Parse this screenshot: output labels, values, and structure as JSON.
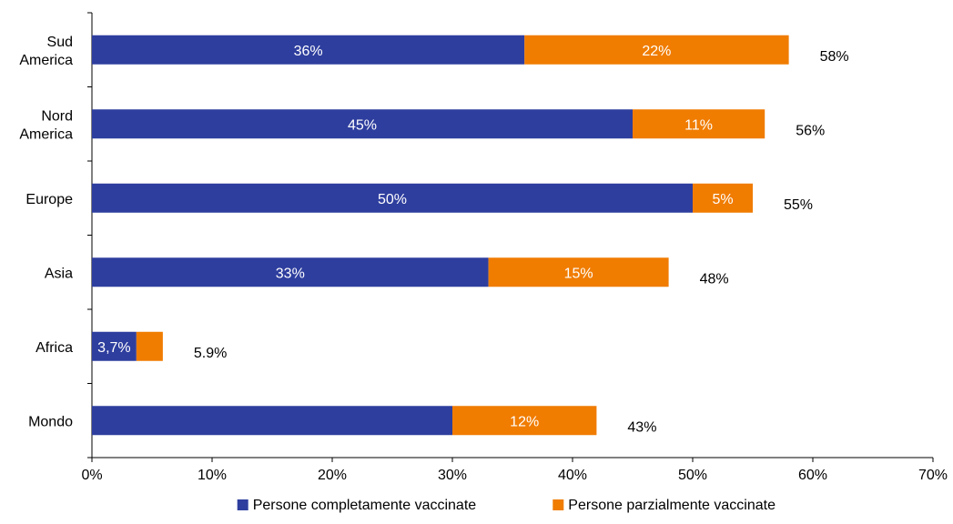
{
  "chart_data": {
    "type": "bar",
    "orientation": "horizontal",
    "stacked": true,
    "categories": [
      "Sud America",
      "Nord America",
      "Europe",
      "Asia",
      "Africa",
      "Mondo"
    ],
    "category_lines": [
      [
        "Sud",
        "America"
      ],
      [
        "Nord",
        "America"
      ],
      [
        "Europe"
      ],
      [
        "Asia"
      ],
      [
        "Africa"
      ],
      [
        "Mondo"
      ]
    ],
    "series": [
      {
        "name": "Persone completamente vaccinate",
        "color": "#2E3E9E",
        "values": [
          36,
          45,
          50,
          33,
          3.7,
          30
        ],
        "labels": [
          "36%",
          "45%",
          "50%",
          "33%",
          "3,7%",
          ""
        ]
      },
      {
        "name": "Persone parzialmente vaccinate",
        "color": "#F07C00",
        "values": [
          22,
          11,
          5,
          15,
          2.2,
          12
        ],
        "labels": [
          "22%",
          "11%",
          "5%",
          "15%",
          "",
          "12%"
        ]
      }
    ],
    "totals": [
      "58%",
      "56%",
      "55%",
      "48%",
      "5.9%",
      "43%"
    ],
    "xlim": [
      0,
      70
    ],
    "x_ticks": [
      "0%",
      "10%",
      "20%",
      "30%",
      "40%",
      "50%",
      "60%",
      "70%"
    ],
    "grid": false,
    "legend_position": "bottom"
  }
}
